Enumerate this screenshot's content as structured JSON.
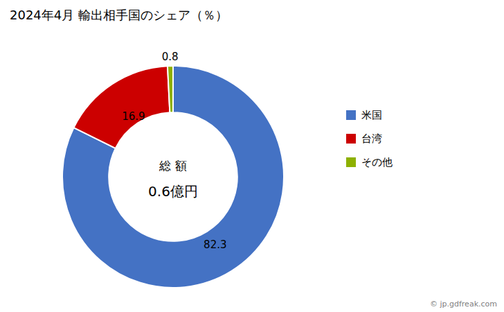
{
  "chart_data": {
    "type": "donut",
    "title": "2024年4月 輸出相手国のシェア（％）",
    "categories": [
      "米国",
      "台湾",
      "その他"
    ],
    "values": [
      82.3,
      16.9,
      0.8
    ],
    "colors": [
      "#4472C4",
      "#CC0000",
      "#8DB000"
    ],
    "data_labels": true,
    "legend": "right",
    "annotations": [
      "総 額",
      "0.6億円",
      "© jp.gdfreak.com"
    ]
  }
}
